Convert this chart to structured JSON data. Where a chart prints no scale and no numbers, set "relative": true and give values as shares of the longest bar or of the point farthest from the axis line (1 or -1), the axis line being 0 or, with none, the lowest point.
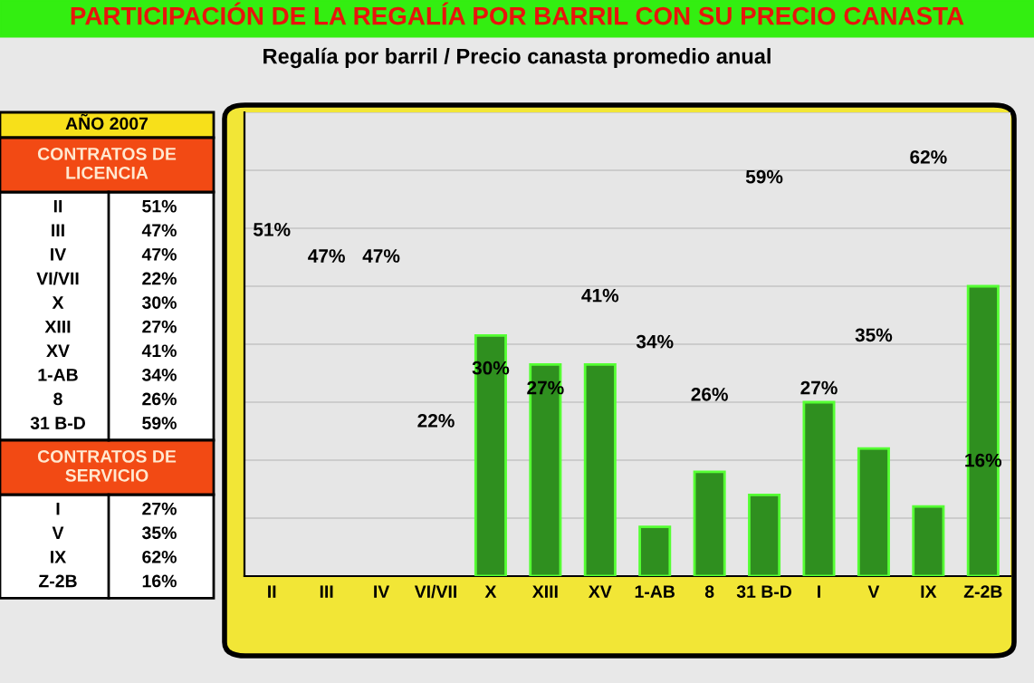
{
  "chart_data": {
    "type": "bar",
    "title": "PARTICIPACIÓN DE LA REGALÍA POR BARRIL CON SU PRECIO CANASTA",
    "subtitle": "Regalía por barril / Precio canasta promedio anual",
    "annotations": [
      "AÑO 2007",
      "CONTRATOS DE LICENCIA",
      "CONTRATOS DE SERVICIO",
      "51%",
      "47%",
      "47%",
      "22%",
      "30%",
      "27%",
      "41%",
      "34%",
      "26%",
      "59%",
      "27%",
      "35%",
      "62%",
      "16%"
    ],
    "categories": [
      "II",
      "III",
      "IV",
      "VI/VII",
      "X",
      "XIII",
      "XV",
      "1-AB",
      "8",
      "31 B-D",
      "I",
      "V",
      "IX",
      "Z-2B"
    ],
    "relative": true,
    "grid": "y",
    "series": [
      {
        "color": "#2f8f1f",
        "values": [
          null,
          null,
          null,
          null,
          0.83,
          0.73,
          0.73,
          0.17,
          0.36,
          0.28,
          0.6,
          0.44,
          0.24,
          1
        ]
      }
    ]
  }
}
